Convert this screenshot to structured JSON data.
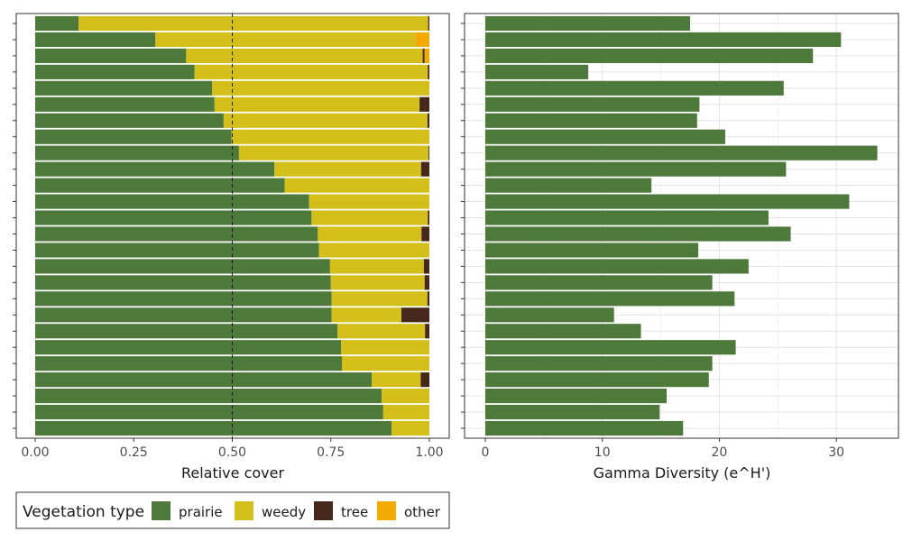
{
  "chart_data": [
    {
      "type": "bar",
      "orientation": "horizontal",
      "stacked": true,
      "xlabel": "Relative cover",
      "xlim": [
        0,
        1
      ],
      "xticks": [
        "0.00",
        "0.25",
        "0.50",
        "0.75",
        "1.00"
      ],
      "reference_line": {
        "x": 0.5,
        "style": "dashed"
      },
      "series": [
        {
          "name": "prairie",
          "values": [
            0.11,
            0.305,
            0.383,
            0.404,
            0.449,
            0.455,
            0.478,
            0.498,
            0.517,
            0.607,
            0.633,
            0.695,
            0.701,
            0.717,
            0.72,
            0.748,
            0.75,
            0.752,
            0.752,
            0.767,
            0.776,
            0.778,
            0.854,
            0.879,
            0.883,
            0.904
          ]
        },
        {
          "name": "weedy",
          "values": [
            0.887,
            0.66,
            0.6,
            0.592,
            0.551,
            0.52,
            0.517,
            0.502,
            0.481,
            0.372,
            0.367,
            0.305,
            0.295,
            0.263,
            0.28,
            0.238,
            0.238,
            0.243,
            0.177,
            0.222,
            0.224,
            0.222,
            0.124,
            0.121,
            0.117,
            0.096
          ]
        },
        {
          "name": "tree",
          "values": [
            0.003,
            0.0,
            0.005,
            0.004,
            0.0,
            0.025,
            0.005,
            0.0,
            0.002,
            0.021,
            0.0,
            0.0,
            0.004,
            0.02,
            0.0,
            0.014,
            0.012,
            0.005,
            0.071,
            0.011,
            0.0,
            0.0,
            0.022,
            0.0,
            0.0,
            0.0
          ]
        },
        {
          "name": "other",
          "values": [
            0.0,
            0.035,
            0.012,
            0.0,
            0.0,
            0.0,
            0.0,
            0.0,
            0.0,
            0.0,
            0.0,
            0.0,
            0.0,
            0.0,
            0.0,
            0.0,
            0.0,
            0.0,
            0.0,
            0.0,
            0.0,
            0.0,
            0.0,
            0.0,
            0.0,
            0.0
          ]
        }
      ]
    },
    {
      "type": "bar",
      "orientation": "horizontal",
      "xlabel": "Gamma Diversity (e^H')",
      "xlim": [
        0,
        35
      ],
      "xticks": [
        "0",
        "10",
        "20",
        "30"
      ],
      "grid": true,
      "series": [
        {
          "name": "",
          "values": [
            17.5,
            30.4,
            28.0,
            8.8,
            25.5,
            18.3,
            18.1,
            20.5,
            33.5,
            25.7,
            14.2,
            31.1,
            24.2,
            26.1,
            18.2,
            22.5,
            19.4,
            21.3,
            11.0,
            13.3,
            21.4,
            19.4,
            19.1,
            15.5,
            14.9,
            16.9
          ]
        }
      ]
    }
  ],
  "legend": {
    "title": "Vegetation type",
    "items": [
      {
        "label": "prairie",
        "color": "#4d7a3a"
      },
      {
        "label": "weedy",
        "color": "#d4be19"
      },
      {
        "label": "tree",
        "color": "#45281a"
      },
      {
        "label": "other",
        "color": "#f2a900"
      }
    ],
    "position": "bottom-left"
  },
  "colors": {
    "prairie": "#4d7a3a",
    "weedy": "#d4be19",
    "tree": "#45281a",
    "other": "#f2a900",
    "diversity": "#4d7a3a"
  }
}
